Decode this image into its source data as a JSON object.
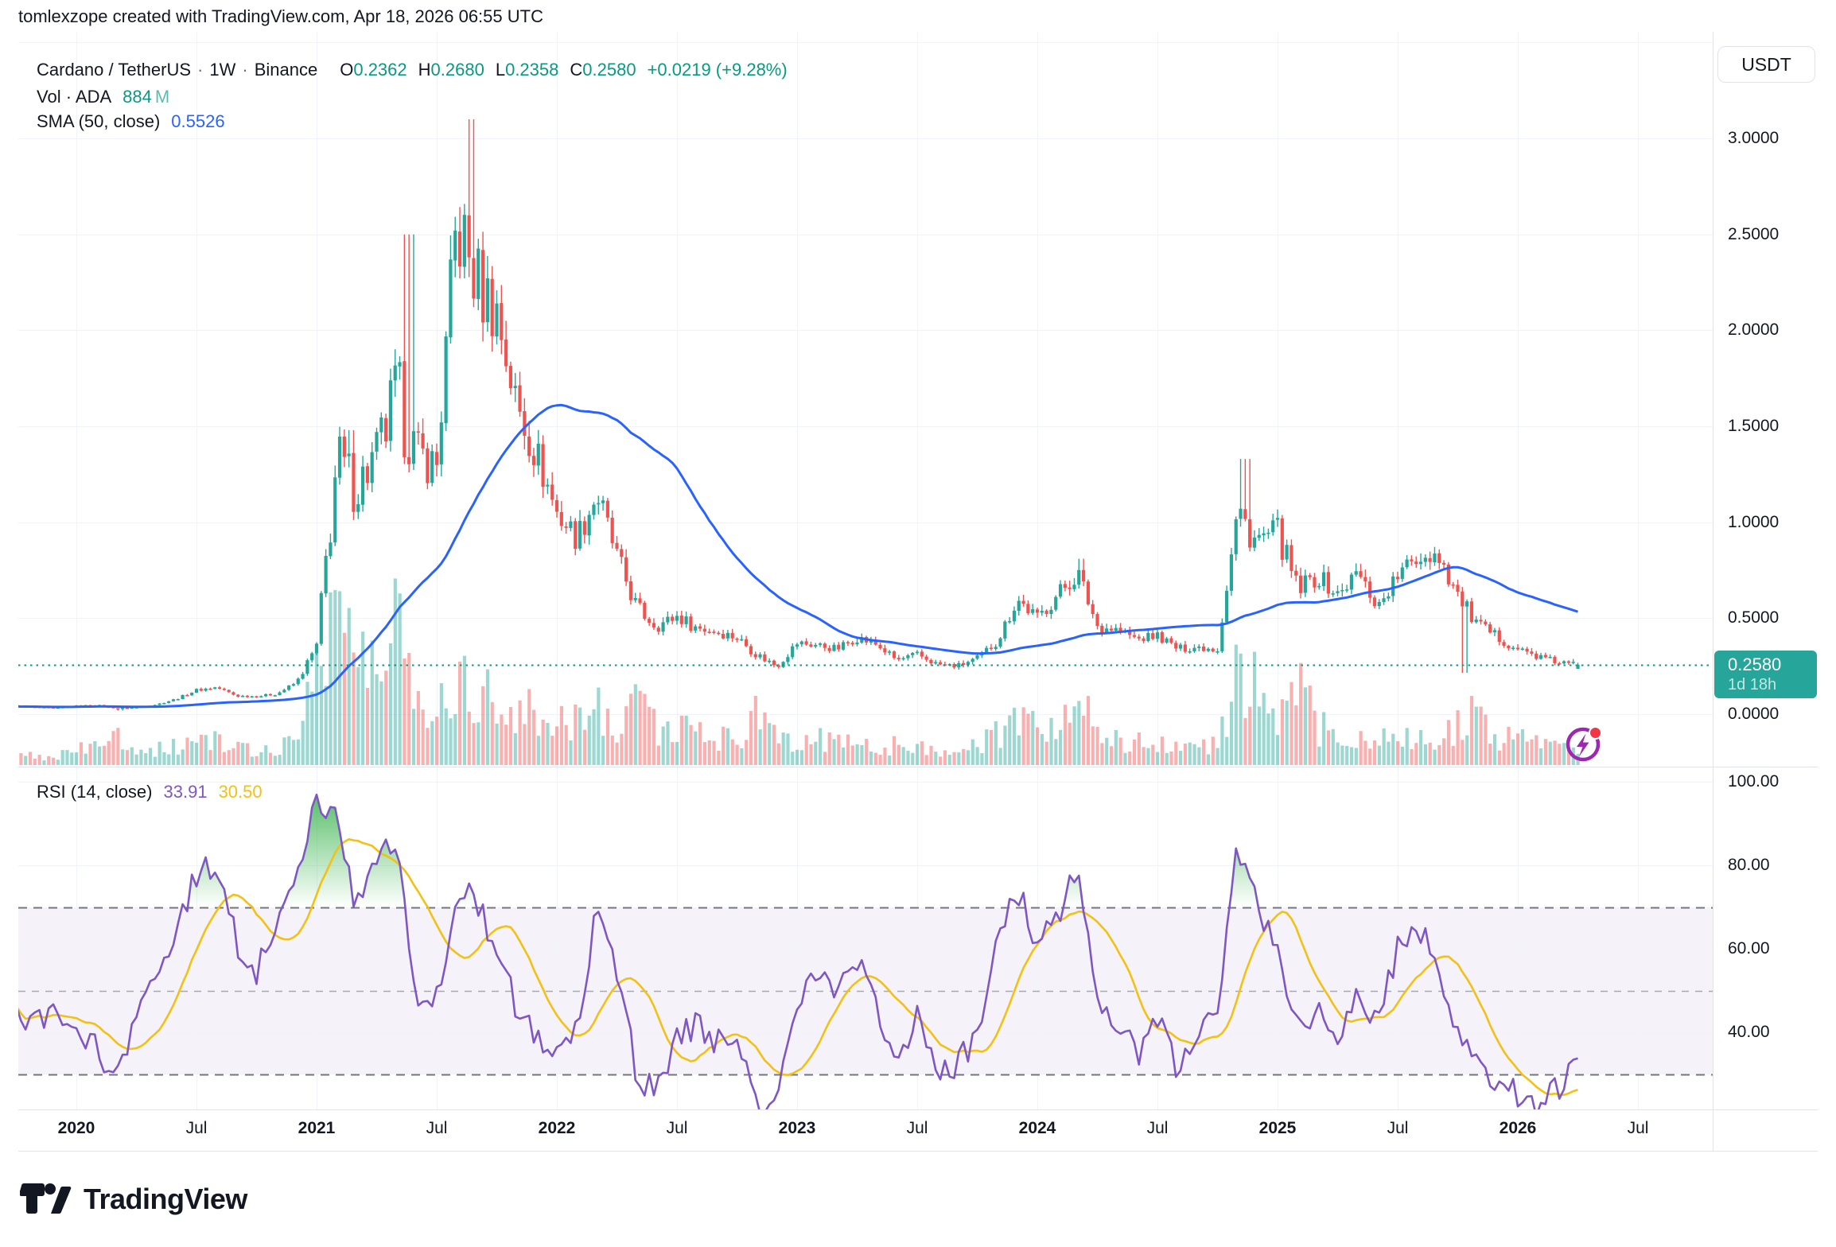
{
  "header": {
    "attribution": "tomlexzope created with TradingView.com, Apr 18, 2026 06:55 UTC"
  },
  "toolbar": {
    "currency_button": "USDT"
  },
  "legend": {
    "symbol": "Cardano / TetherUS",
    "separator": "·",
    "interval": "1W",
    "exchange": "Binance",
    "ohlc": [
      {
        "label": "O",
        "value": "0.2362"
      },
      {
        "label": "H",
        "value": "0.2680"
      },
      {
        "label": "L",
        "value": "0.2358"
      },
      {
        "label": "C",
        "value": "0.2580"
      }
    ],
    "change": "+0.0219 (+9.28%)",
    "volume_label": "Vol · ADA",
    "volume_value": "884",
    "volume_unit": "M",
    "sma_label": "SMA (50, close)",
    "sma_value": "0.5526"
  },
  "rsi_legend": {
    "label": "RSI (14, close)",
    "rsi_value": "33.91",
    "ma_value": "30.50"
  },
  "price_scale": {
    "labels": [
      "3.0000",
      "2.5000",
      "2.0000",
      "1.5000",
      "1.0000",
      "0.5000",
      "0.0000"
    ],
    "badge": {
      "price": "0.2580",
      "countdown": "1d 18h"
    }
  },
  "rsi_scale": {
    "labels": [
      "100.00",
      "80.00",
      "60.00",
      "40.00"
    ]
  },
  "time_scale": {
    "labels": [
      "2020",
      "Jul",
      "2021",
      "Jul",
      "2022",
      "Jul",
      "2023",
      "Jul",
      "2024",
      "Jul",
      "2025",
      "Jul",
      "2026",
      "Jul"
    ]
  },
  "footer": {
    "brand": "TradingView"
  },
  "colors": {
    "up": "#26a69a",
    "down": "#ef5350",
    "vol_up": "rgba(38,166,154,0.45)",
    "vol_down": "rgba(239,83,80,0.45)",
    "sma": "#2962ff",
    "rsi": "#7e57c2",
    "rsi_ma": "#f2c114",
    "grid": "#f0f3fa",
    "border": "#e0e3eb",
    "value_up_text": "#089981",
    "badge_bg": "#26a69a",
    "band_fill": "rgba(126,87,194,0.08)",
    "overbought_fill": "#22ab38",
    "dashed_strong": "#72767e",
    "dashed_mid": "#a6a9b0",
    "boost_purple": "#9c27b0",
    "boost_dot": "#f23645"
  },
  "chart_data": {
    "type": "candlestick+volume+rsi",
    "title": "Cardano / TetherUS (ADA/USDT), 1W, Binance",
    "x_domain": [
      "Oct 2019",
      "Apr 2026"
    ],
    "price_axis": {
      "min": 0,
      "max": 3.5,
      "ticks": [
        0,
        0.5,
        1.0,
        1.5,
        2.0,
        2.5,
        3.0
      ]
    },
    "rsi_axis": {
      "ticks": [
        100,
        80,
        60,
        40
      ],
      "dashed_levels": [
        70,
        50,
        30
      ],
      "band": [
        30,
        70
      ],
      "overbought": 70
    },
    "current_price": 0.258,
    "last_candle": {
      "open": 0.2362,
      "high": 0.268,
      "low": 0.2358,
      "close": 0.258
    },
    "sma_period": 50,
    "sma_last": 0.5526,
    "rsi_period": 14,
    "rsi_last": 33.91,
    "rsi_ma_last": 30.5,
    "volume_last": "884M",
    "monthly_anchors": {
      "start_month": "2019-10",
      "closes": [
        0.04,
        0.037,
        0.033,
        0.043,
        0.048,
        0.03,
        0.036,
        0.05,
        0.08,
        0.125,
        0.14,
        0.095,
        0.093,
        0.105,
        0.165,
        0.35,
        1.3,
        1.18,
        1.35,
        1.65,
        1.35,
        1.3,
        2.55,
        2.25,
        2.1,
        1.6,
        1.35,
        1.05,
        0.92,
        1.15,
        0.82,
        0.55,
        0.46,
        0.51,
        0.45,
        0.43,
        0.4,
        0.31,
        0.25,
        0.37,
        0.36,
        0.34,
        0.4,
        0.36,
        0.28,
        0.31,
        0.26,
        0.25,
        0.29,
        0.38,
        0.6,
        0.5,
        0.62,
        0.74,
        0.46,
        0.44,
        0.39,
        0.41,
        0.34,
        0.35,
        0.34,
        1.05,
        0.9,
        0.95,
        0.64,
        0.72,
        0.62,
        0.74,
        0.56,
        0.72,
        0.82,
        0.84,
        0.62,
        0.46,
        0.4,
        0.34,
        0.3,
        0.27,
        0.258
      ],
      "volumes_rel": [
        0.05,
        0.05,
        0.05,
        0.08,
        0.1,
        0.16,
        0.1,
        0.09,
        0.1,
        0.15,
        0.13,
        0.09,
        0.08,
        0.1,
        0.14,
        0.6,
        1.0,
        0.55,
        0.5,
        0.85,
        0.45,
        0.3,
        0.5,
        0.45,
        0.34,
        0.3,
        0.27,
        0.28,
        0.24,
        0.33,
        0.24,
        0.42,
        0.22,
        0.18,
        0.2,
        0.15,
        0.14,
        0.27,
        0.14,
        0.16,
        0.14,
        0.12,
        0.14,
        0.1,
        0.12,
        0.1,
        0.09,
        0.08,
        0.1,
        0.17,
        0.22,
        0.2,
        0.24,
        0.33,
        0.22,
        0.15,
        0.12,
        0.13,
        0.11,
        0.1,
        0.12,
        0.5,
        0.42,
        0.3,
        0.45,
        0.22,
        0.15,
        0.13,
        0.12,
        0.17,
        0.15,
        0.12,
        0.22,
        0.28,
        0.16,
        0.14,
        0.11,
        0.1,
        0.1
      ],
      "rsi": [
        45,
        42,
        44,
        40,
        36,
        28,
        42,
        55,
        65,
        78,
        80,
        62,
        55,
        66,
        80,
        95,
        92,
        70,
        80,
        86,
        44,
        48,
        74,
        72,
        60,
        46,
        39,
        36,
        40,
        70,
        54,
        30,
        26,
        38,
        42,
        38,
        36,
        23,
        26,
        48,
        54,
        49,
        57,
        45,
        33,
        44,
        30,
        32,
        40,
        64,
        75,
        60,
        68,
        81,
        48,
        42,
        35,
        43,
        31,
        38,
        45,
        84,
        70,
        60,
        41,
        46,
        39,
        49,
        42,
        60,
        65,
        56,
        39,
        31,
        28,
        25,
        23,
        27,
        33.91
      ]
    },
    "wick_events": [
      {
        "m": 5.2,
        "low": 0.019
      },
      {
        "m": 16.6,
        "high": 1.48
      },
      {
        "m": 19.6,
        "high": 2.5
      },
      {
        "m": 22.7,
        "high": 3.1
      },
      {
        "m": 53.2,
        "high": 0.81
      },
      {
        "m": 61.4,
        "high": 1.33
      },
      {
        "m": 72.3,
        "low": 0.215
      }
    ]
  }
}
